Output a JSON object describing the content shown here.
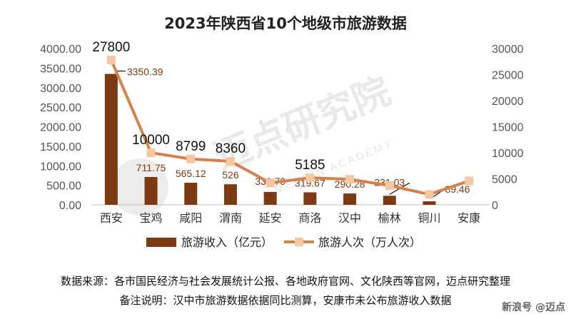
{
  "chart_data": {
    "type": "bar",
    "title": "2023年陕西省10个地级市旅游数据",
    "categories": [
      "西安",
      "宝鸡",
      "咸阳",
      "渭南",
      "延安",
      "商洛",
      "汉中",
      "榆林",
      "铜川",
      "安康"
    ],
    "series": [
      {
        "name": "旅游收入（亿元）",
        "kind": "bar",
        "axis": "left",
        "color": "#7b3a12",
        "values": [
          3350.39,
          711.75,
          565.12,
          526,
          330.7,
          319.67,
          290.28,
          231.03,
          89.46,
          null
        ],
        "labels": [
          "3350.39",
          "711.75",
          "565.12",
          "526",
          "330.70",
          "319.67",
          "290.28",
          "231.03",
          "89.46",
          ""
        ]
      },
      {
        "name": "旅游人次（万人次）",
        "kind": "line",
        "axis": "right",
        "color": "#d4824a",
        "marker_color": "#f4c7a1",
        "values": [
          27800,
          10000,
          8799,
          8360,
          4200,
          5185,
          4900,
          3700,
          2000,
          4600
        ],
        "labels": [
          "27800",
          "10000",
          "8799",
          "8360",
          "",
          "5185",
          "",
          "",
          "",
          ""
        ]
      }
    ],
    "y_left": {
      "range": [
        0,
        4000
      ],
      "ticks": [
        "0.00",
        "500.00",
        "1000.00",
        "1500.00",
        "2000.00",
        "2500.00",
        "3000.00",
        "3500.00",
        "4000.00"
      ]
    },
    "y_right": {
      "range": [
        0,
        30000
      ],
      "ticks": [
        "0",
        "5000",
        "10000",
        "15000",
        "20000",
        "25000",
        "30000"
      ]
    },
    "legend_position": "bottom",
    "grid": false
  },
  "notes": {
    "source": "数据来源：各市国民经济与社会发展统计公报、各地政府官网、文化陕西等官网，迈点研究整理",
    "remark": "备注说明：汉中市旅游数据依据同比测算，安康市未公布旅游收入数据"
  },
  "watermark": {
    "text": "迈点研究院",
    "sub": "MEADIN ACADEMY"
  },
  "brand": {
    "name": "新浪号",
    "handle": "@迈点"
  }
}
